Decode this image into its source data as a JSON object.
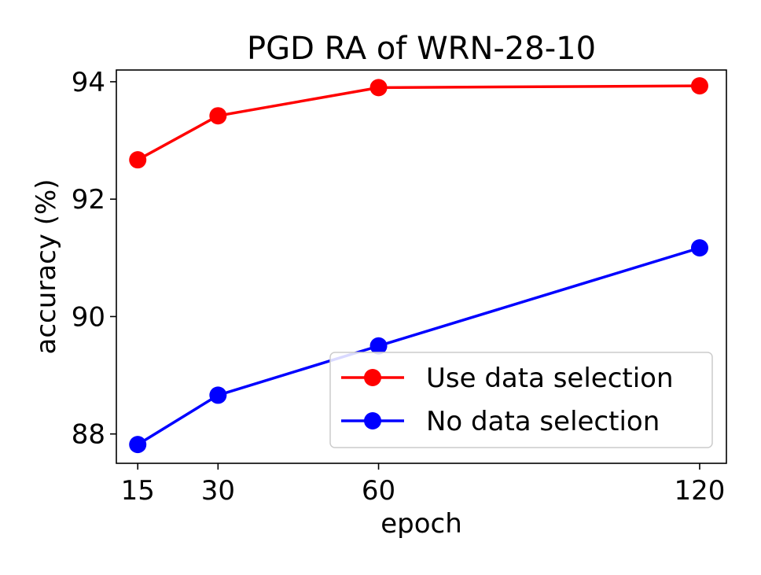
{
  "chart_data": {
    "type": "line",
    "title": "PGD RA of WRN-28-10",
    "xlabel": "epoch",
    "ylabel": "accuracy (%)",
    "x": [
      15,
      30,
      60,
      120
    ],
    "x_tick_labels": [
      "15",
      "30",
      "60",
      "120"
    ],
    "y_ticks": [
      88,
      90,
      92,
      94
    ],
    "y_tick_labels": [
      "88",
      "90",
      "92",
      "94"
    ],
    "xlim": [
      11,
      125
    ],
    "ylim": [
      87.5,
      94.2
    ],
    "grid": false,
    "legend_position": "bottom-right",
    "series": [
      {
        "name": "Use data selection",
        "color": "#ff0000",
        "values": [
          92.67,
          93.42,
          93.9,
          93.93
        ]
      },
      {
        "name": "No data selection",
        "color": "#0000ff",
        "values": [
          87.82,
          88.66,
          89.5,
          91.17
        ]
      }
    ]
  }
}
